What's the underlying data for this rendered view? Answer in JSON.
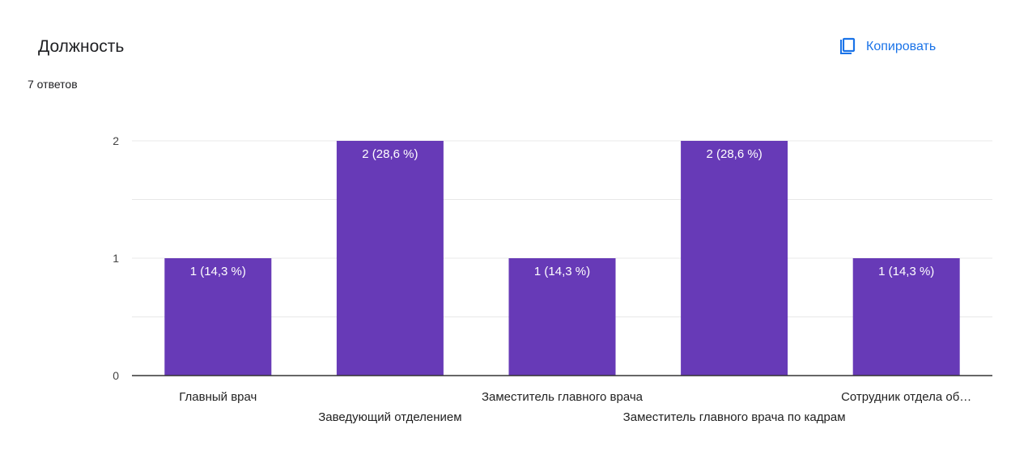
{
  "question": {
    "title": "Должность",
    "responses": "7 ответов"
  },
  "toolbar": {
    "copy_label": "Копировать",
    "copy_icon": "copy-icon"
  },
  "colors": {
    "bar": "#673ab7",
    "accent": "#1a73e8",
    "grid": "#e8e8e8",
    "axis": "#333333"
  },
  "chart_data": {
    "type": "bar",
    "categories": [
      "Главный врач",
      "Заведующий отделением",
      "Заместитель главного врача",
      "Заместитель главного врача по кадрам",
      "Сотрудник отдела об…"
    ],
    "values": [
      1,
      2,
      1,
      2,
      1
    ],
    "data_labels": [
      "1 (14,3 %)",
      "2 (28,6 %)",
      "1 (14,3 %)",
      "2 (28,6 %)",
      "1 (14,3 %)"
    ],
    "yticks": [
      "0",
      "1",
      "2"
    ],
    "ylim": [
      0,
      2
    ],
    "grid": true,
    "title": "",
    "xlabel": "",
    "ylabel": ""
  }
}
